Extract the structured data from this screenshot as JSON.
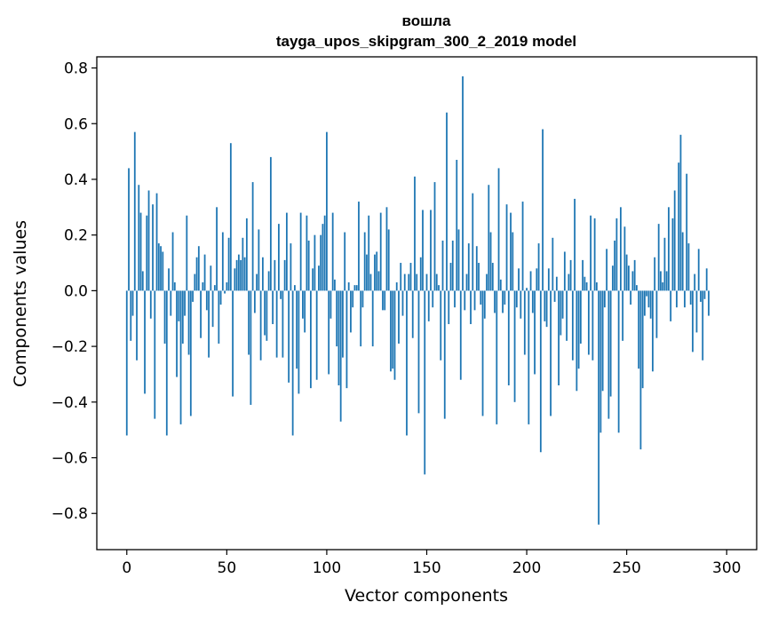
{
  "chart_data": {
    "type": "bar",
    "title": "вошла",
    "subtitle": "tayga_upos_skipgram_300_2_2019 model",
    "xlabel": "Vector components",
    "ylabel": "Components values",
    "xlim": [
      -15,
      315
    ],
    "ylim": [
      -0.93,
      0.84
    ],
    "xticks": [
      0,
      50,
      100,
      150,
      200,
      250,
      300
    ],
    "xtick_labels": [
      "0",
      "50",
      "100",
      "150",
      "200",
      "250",
      "300"
    ],
    "yticks": [
      0.8,
      0.6,
      0.4,
      0.2,
      0.0,
      -0.2,
      -0.4,
      -0.6,
      -0.8
    ],
    "ytick_labels": [
      "0.8",
      "0.6",
      "0.4",
      "0.2",
      "0.0",
      "−0.2",
      "−0.4",
      "−0.6",
      "−0.8"
    ],
    "bar_color": "#1f77b4",
    "grid": false,
    "legend": "none",
    "series": [
      {
        "values": [
          -0.52,
          0.44,
          -0.18,
          -0.09,
          0.57,
          -0.25,
          0.38,
          0.28,
          0.07,
          -0.37,
          0.27,
          0.36,
          -0.1,
          0.31,
          -0.46,
          0.35,
          0.17,
          0.16,
          0.14,
          -0.19,
          -0.52,
          0.08,
          -0.09,
          0.21,
          0.03,
          -0.31,
          -0.11,
          -0.48,
          -0.19,
          -0.09,
          0.27,
          -0.23,
          -0.45,
          -0.04,
          0.06,
          0.12,
          0.16,
          -0.17,
          0.03,
          0.13,
          -0.07,
          -0.24,
          0.09,
          -0.13,
          0.02,
          0.3,
          -0.19,
          -0.05,
          0.21,
          -0.01,
          0.03,
          0.19,
          0.53,
          -0.38,
          0.08,
          0.11,
          0.13,
          0.11,
          0.19,
          0.12,
          0.26,
          -0.23,
          -0.41,
          0.39,
          -0.08,
          0.06,
          0.22,
          -0.25,
          0.12,
          -0.16,
          -0.18,
          0.07,
          0.48,
          -0.12,
          0.11,
          -0.24,
          0.24,
          -0.03,
          -0.24,
          0.11,
          0.28,
          -0.33,
          0.17,
          -0.52,
          0.02,
          -0.28,
          -0.37,
          0.28,
          -0.1,
          -0.15,
          0.27,
          0.18,
          -0.35,
          0.08,
          0.2,
          -0.32,
          0.09,
          0.2,
          0.24,
          0.27,
          0.57,
          -0.3,
          -0.1,
          0.28,
          0.04,
          -0.2,
          -0.34,
          -0.47,
          -0.24,
          0.21,
          -0.35,
          0.03,
          -0.15,
          -0.06,
          0.02,
          0.02,
          0.32,
          -0.2,
          -0.06,
          0.21,
          0.13,
          0.27,
          0.06,
          -0.2,
          0.13,
          0.14,
          0.07,
          0.28,
          -0.07,
          -0.07,
          0.3,
          0.22,
          -0.29,
          -0.28,
          -0.32,
          0.03,
          -0.19,
          0.1,
          -0.09,
          0.06,
          -0.52,
          0.06,
          0.1,
          -0.17,
          0.41,
          0.06,
          -0.44,
          0.12,
          0.29,
          -0.66,
          0.06,
          -0.11,
          0.29,
          -0.06,
          0.39,
          0.06,
          0.02,
          -0.25,
          0.18,
          -0.46,
          0.64,
          -0.12,
          0.1,
          0.18,
          -0.06,
          0.47,
          0.22,
          -0.32,
          0.77,
          -0.07,
          0.06,
          0.17,
          -0.12,
          0.35,
          -0.07,
          0.16,
          0.1,
          -0.05,
          -0.45,
          -0.1,
          0.06,
          0.38,
          0.21,
          0.1,
          -0.08,
          -0.48,
          0.44,
          0.04,
          -0.08,
          -0.05,
          0.31,
          -0.34,
          0.28,
          0.21,
          -0.4,
          -0.06,
          0.08,
          -0.1,
          0.32,
          -0.23,
          0.01,
          -0.48,
          0.07,
          -0.08,
          -0.3,
          0.08,
          0.17,
          -0.58,
          0.58,
          -0.11,
          -0.13,
          0.08,
          -0.45,
          0.19,
          -0.04,
          0.05,
          -0.34,
          -0.16,
          -0.1,
          0.14,
          -0.18,
          0.06,
          0.11,
          -0.25,
          0.33,
          -0.36,
          -0.28,
          -0.19,
          0.11,
          0.05,
          0.03,
          -0.23,
          0.27,
          -0.25,
          0.26,
          0.03,
          -0.84,
          -0.51,
          -0.36,
          -0.06,
          0.15,
          -0.46,
          -0.38,
          0.09,
          0.18,
          0.26,
          -0.51,
          0.3,
          -0.18,
          0.23,
          0.13,
          0.09,
          -0.05,
          0.07,
          0.11,
          0.02,
          -0.28,
          -0.57,
          -0.35,
          -0.09,
          -0.02,
          -0.06,
          -0.1,
          -0.29,
          0.12,
          -0.17,
          0.24,
          0.07,
          0.03,
          0.19,
          0.07,
          0.3,
          -0.11,
          0.26,
          0.36,
          -0.06,
          0.46,
          0.56,
          0.21,
          -0.06,
          0.42,
          0.17,
          -0.05,
          -0.22,
          0.06,
          -0.15,
          0.15,
          -0.04,
          -0.25,
          -0.03,
          0.08,
          -0.09
        ]
      }
    ]
  }
}
